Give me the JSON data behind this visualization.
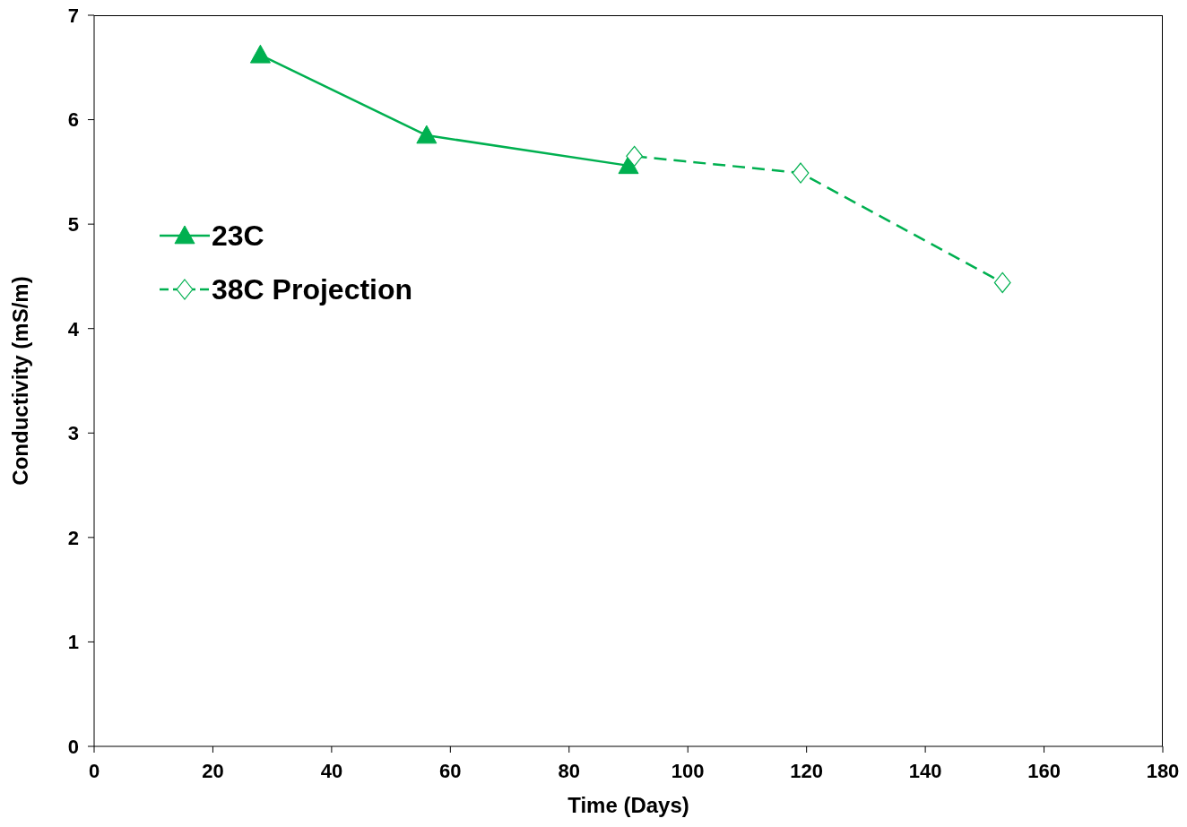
{
  "chart_data": {
    "type": "line",
    "xlabel": "Time (Days)",
    "ylabel": "Conductivity (mS/m)",
    "xlim": [
      0,
      180
    ],
    "xticks": [
      0,
      20,
      40,
      60,
      80,
      100,
      120,
      140,
      160,
      180
    ],
    "ylim": [
      0,
      7
    ],
    "yticks": [
      0,
      1,
      2,
      3,
      4,
      5,
      6,
      7
    ],
    "grid": false,
    "legend": "top left",
    "series": [
      {
        "name": "23C",
        "color": "#00b050",
        "marker": "triangle",
        "line_style": "solid",
        "x": [
          28,
          56,
          90
        ],
        "values": [
          6.62,
          5.85,
          5.56
        ]
      },
      {
        "name": "38C Projection",
        "color": "#00b050",
        "marker": "diamond",
        "line_style": "dashed",
        "x": [
          91,
          119,
          153
        ],
        "values": [
          5.65,
          5.49,
          4.44
        ]
      }
    ]
  }
}
